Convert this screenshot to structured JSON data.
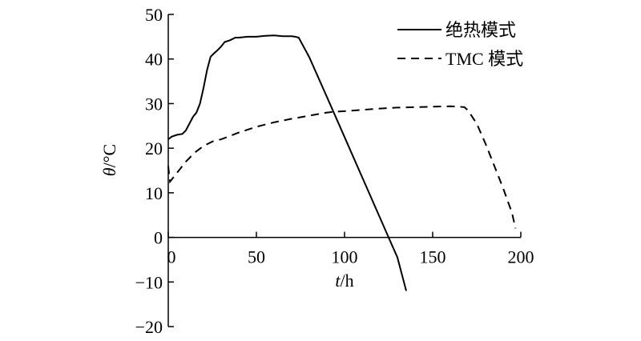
{
  "chart_data": {
    "type": "line",
    "title": "",
    "xlabel": "t/h",
    "ylabel": "θ/°C",
    "xlabel_italic": "t",
    "xlabel_rest": "/h",
    "ylabel_italic": "θ",
    "ylabel_rest": "/°C",
    "xlim": [
      0,
      200
    ],
    "ylim": [
      -20,
      50
    ],
    "xticks": [
      0,
      50,
      100,
      150,
      200
    ],
    "yticks": [
      -20,
      -10,
      0,
      10,
      20,
      30,
      40,
      50
    ],
    "xtick_labels": [
      "0",
      "50",
      "100",
      "150",
      "200"
    ],
    "ytick_labels": [
      "−20",
      "−10",
      "0",
      "10",
      "20",
      "30",
      "40",
      "50"
    ],
    "grid": false,
    "legend_position": "top-right",
    "series": [
      {
        "name": "绝热模式",
        "line_style": "solid",
        "color": "#000000",
        "x": [
          0,
          2,
          5,
          8,
          10,
          12,
          14,
          16,
          18,
          20,
          22,
          24,
          26,
          28,
          30,
          32,
          35,
          38,
          40,
          45,
          50,
          55,
          60,
          65,
          70,
          72,
          74,
          80,
          90,
          100,
          110,
          120,
          125,
          130,
          135
        ],
        "y": [
          22,
          22.6,
          23,
          23.2,
          24,
          25.5,
          27,
          28,
          30,
          33.5,
          37.5,
          40.5,
          41.3,
          42,
          42.8,
          43.8,
          44.2,
          44.8,
          44.8,
          45,
          45,
          45.2,
          45.3,
          45.1,
          45.1,
          45,
          44.8,
          40.4,
          31.5,
          22.5,
          13.5,
          4.5,
          0,
          -4.5,
          -12
        ]
      },
      {
        "name": "TMC 模式",
        "line_style": "dashed",
        "color": "#000000",
        "x": [
          0,
          0.5,
          1,
          2,
          5,
          10,
          15,
          20,
          25,
          30,
          40,
          50,
          60,
          70,
          80,
          90,
          95,
          100,
          110,
          120,
          130,
          140,
          150,
          160,
          165,
          168,
          170,
          175,
          180,
          185,
          190,
          195,
          197
        ],
        "y": [
          16,
          14,
          12.5,
          13,
          14.5,
          17,
          19,
          20.5,
          21.5,
          22,
          23.5,
          24.8,
          25.8,
          26.6,
          27.3,
          28,
          28.2,
          28.3,
          28.6,
          28.9,
          29.1,
          29.2,
          29.3,
          29.4,
          29.3,
          29.2,
          28.5,
          25.5,
          21,
          16,
          11,
          5.5,
          2
        ]
      }
    ]
  }
}
